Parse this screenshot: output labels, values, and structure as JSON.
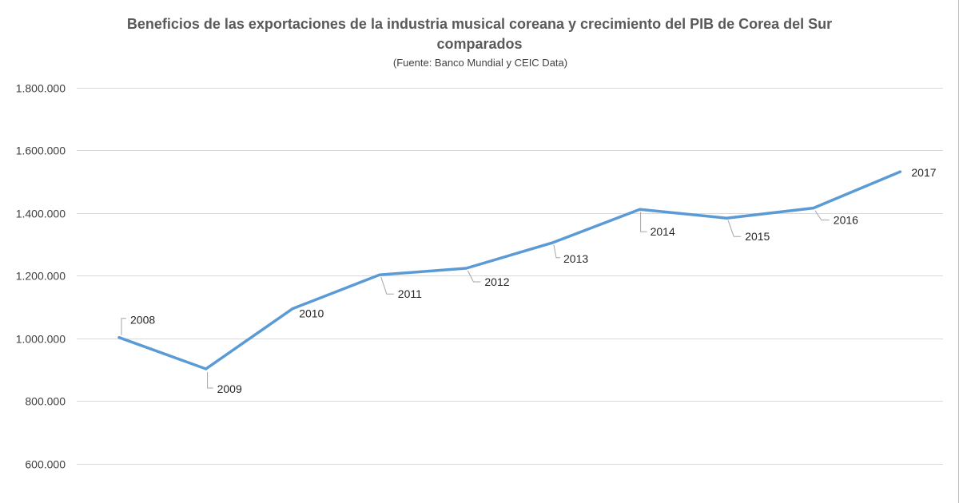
{
  "chart_data": {
    "type": "line",
    "title_line1": "Beneficios de las exportaciones de la industria musical coreana y crecimiento del PIB de Corea del Sur",
    "title_line2": "comparados",
    "subtitle": "(Fuente: Banco Mundial y CEIC Data)",
    "xlabel": "",
    "ylabel": "",
    "ylim": [
      600000,
      1800000
    ],
    "y_ticks": [
      {
        "value": 600000,
        "label": "600.000"
      },
      {
        "value": 800000,
        "label": "800.000"
      },
      {
        "value": 1000000,
        "label": "1.000.000"
      },
      {
        "value": 1200000,
        "label": "1.200.000"
      },
      {
        "value": 1400000,
        "label": "1.400.000"
      },
      {
        "value": 1600000,
        "label": "1.600.000"
      },
      {
        "value": 1800000,
        "label": "1.800.000"
      }
    ],
    "grid": true,
    "legend": "none",
    "series": [
      {
        "name": "PIB",
        "color": "#5b9bd5",
        "points": [
          {
            "year": "2008",
            "value": 1002000
          },
          {
            "year": "2009",
            "value": 902000
          },
          {
            "year": "2010",
            "value": 1094000
          },
          {
            "year": "2011",
            "value": 1202000
          },
          {
            "year": "2012",
            "value": 1223000
          },
          {
            "year": "2013",
            "value": 1305000
          },
          {
            "year": "2014",
            "value": 1411000
          },
          {
            "year": "2015",
            "value": 1383000
          },
          {
            "year": "2016",
            "value": 1415000
          },
          {
            "year": "2017",
            "value": 1531000
          }
        ]
      }
    ]
  }
}
